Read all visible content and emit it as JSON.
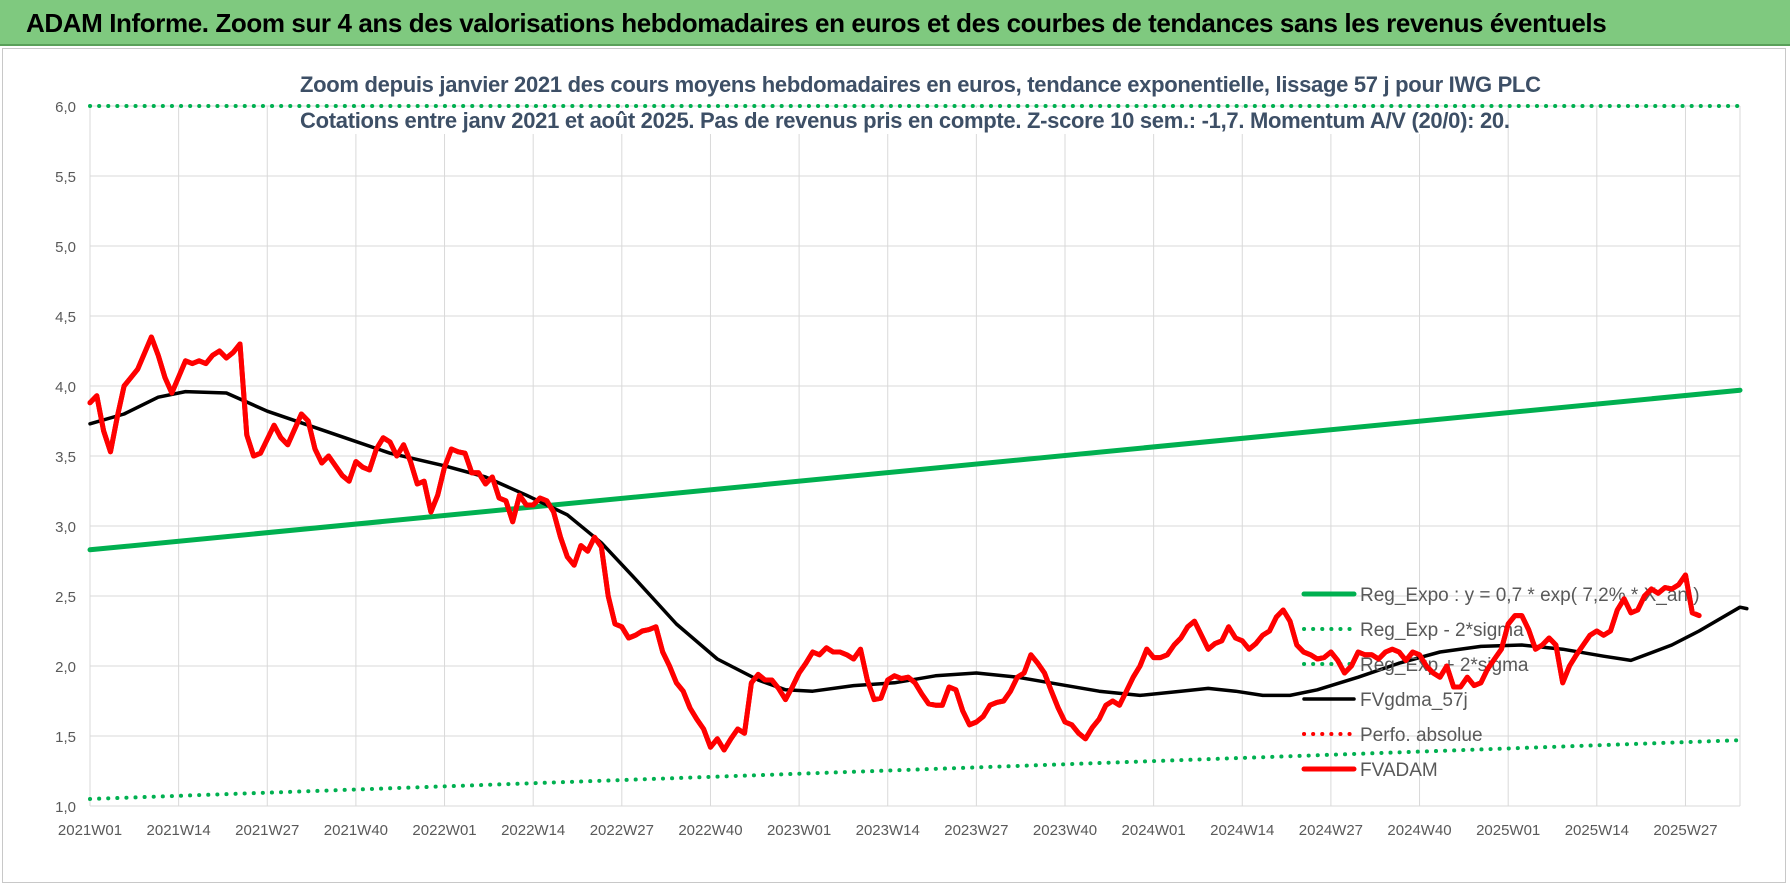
{
  "header": {
    "title": "ADAM Informe. Zoom sur 4 ans des valorisations hebdomadaires en euros et des courbes de tendances sans les revenus éventuels"
  },
  "colors": {
    "banner": "#7fc97f",
    "reg_expo": "#00b050",
    "fvgdma": "#000000",
    "fvadam": "#ff0000",
    "grid": "#d9d9d9",
    "subtitle": "#3d4f66"
  },
  "chart_data": {
    "type": "line",
    "subtitle_line1": "Zoom depuis janvier 2021 des cours moyens hebdomadaires en euros, tendance exponentielle, lissage 57 j pour IWG PLC",
    "subtitle_line2": "Cotations entre janv 2021 et août 2025. Pas de revenus pris en compte. Z-score 10 sem.: -1,7. Momentum A/V (20/0): 20.",
    "xlabel": "",
    "ylabel": "",
    "ylim": [
      1.0,
      6.0
    ],
    "y_ticks": [
      "1,0",
      "1,5",
      "2,0",
      "2,5",
      "3,0",
      "3,5",
      "4,0",
      "4,5",
      "5,0",
      "5,5",
      "6,0"
    ],
    "x_tick_labels": [
      "2021W01",
      "2021W14",
      "2021W27",
      "2021W40",
      "2022W01",
      "2022W14",
      "2022W27",
      "2022W40",
      "2023W01",
      "2023W14",
      "2023W27",
      "2023W40",
      "2024W01",
      "2024W14",
      "2024W27",
      "2024W40",
      "2025W01",
      "2025W14",
      "2025W27"
    ],
    "week_count": 243,
    "grid": true,
    "legend_position": "bottom-right",
    "legend": [
      "Reg_Expo : y = 0,7 * exp( 7,2% *  X_an )",
      "Reg_Exp - 2*sigma",
      "Reg_Exp + 2*sigma",
      "FVgdma_57j",
      "Perfo. absolue",
      "FVADAM"
    ],
    "series": [
      {
        "name": "Reg_Expo : y = 0,7 * exp( 7,2% *  X_an )",
        "style": "solid-thick",
        "color": "#00b050",
        "points": [
          [
            0,
            2.83
          ],
          [
            242,
            3.97
          ]
        ]
      },
      {
        "name": "Reg_Exp - 2*sigma",
        "style": "dotted",
        "color": "#00b050",
        "points": [
          [
            0,
            1.05
          ],
          [
            242,
            1.47
          ]
        ]
      },
      {
        "name": "Reg_Exp + 2*sigma",
        "style": "dotted",
        "color": "#00b050",
        "points": [
          [
            0,
            6.0
          ],
          [
            242,
            6.0
          ]
        ]
      },
      {
        "name": "FVgdma_57j",
        "style": "solid",
        "color": "#000000",
        "points": [
          [
            0,
            3.73
          ],
          [
            5,
            3.8
          ],
          [
            10,
            3.92
          ],
          [
            14,
            3.96
          ],
          [
            20,
            3.95
          ],
          [
            26,
            3.82
          ],
          [
            32,
            3.72
          ],
          [
            38,
            3.62
          ],
          [
            44,
            3.52
          ],
          [
            52,
            3.43
          ],
          [
            58,
            3.35
          ],
          [
            64,
            3.22
          ],
          [
            70,
            3.08
          ],
          [
            75,
            2.88
          ],
          [
            80,
            2.62
          ],
          [
            86,
            2.3
          ],
          [
            92,
            2.05
          ],
          [
            98,
            1.9
          ],
          [
            102,
            1.83
          ],
          [
            106,
            1.82
          ],
          [
            112,
            1.86
          ],
          [
            118,
            1.88
          ],
          [
            124,
            1.93
          ],
          [
            130,
            1.95
          ],
          [
            136,
            1.92
          ],
          [
            142,
            1.87
          ],
          [
            148,
            1.82
          ],
          [
            154,
            1.79
          ],
          [
            160,
            1.82
          ],
          [
            164,
            1.84
          ],
          [
            168,
            1.82
          ],
          [
            172,
            1.79
          ],
          [
            176,
            1.79
          ],
          [
            180,
            1.83
          ],
          [
            186,
            1.92
          ],
          [
            192,
            2.02
          ],
          [
            198,
            2.1
          ],
          [
            204,
            2.14
          ],
          [
            210,
            2.15
          ],
          [
            216,
            2.12
          ],
          [
            222,
            2.07
          ],
          [
            226,
            2.04
          ],
          [
            232,
            2.15
          ],
          [
            236,
            2.25
          ],
          [
            242,
            2.42
          ],
          [
            243,
            2.41
          ]
        ]
      },
      {
        "name": "FVADAM",
        "style": "solid-thick",
        "color": "#ff0000",
        "points": [
          [
            0,
            3.88
          ],
          [
            1,
            3.93
          ],
          [
            2,
            3.68
          ],
          [
            3,
            3.53
          ],
          [
            4,
            3.78
          ],
          [
            5,
            4.0
          ],
          [
            7,
            4.12
          ],
          [
            9,
            4.35
          ],
          [
            10,
            4.22
          ],
          [
            11,
            4.06
          ],
          [
            12,
            3.95
          ],
          [
            14,
            4.18
          ],
          [
            15,
            4.16
          ],
          [
            16,
            4.18
          ],
          [
            17,
            4.16
          ],
          [
            18,
            4.22
          ],
          [
            19,
            4.25
          ],
          [
            20,
            4.2
          ],
          [
            21,
            4.24
          ],
          [
            22,
            4.3
          ],
          [
            23,
            3.65
          ],
          [
            24,
            3.5
          ],
          [
            25,
            3.52
          ],
          [
            27,
            3.72
          ],
          [
            28,
            3.63
          ],
          [
            29,
            3.58
          ],
          [
            31,
            3.8
          ],
          [
            32,
            3.75
          ],
          [
            33,
            3.55
          ],
          [
            34,
            3.45
          ],
          [
            35,
            3.5
          ],
          [
            37,
            3.36
          ],
          [
            38,
            3.32
          ],
          [
            39,
            3.46
          ],
          [
            40,
            3.42
          ],
          [
            41,
            3.4
          ],
          [
            42,
            3.55
          ],
          [
            43,
            3.63
          ],
          [
            44,
            3.6
          ],
          [
            45,
            3.5
          ],
          [
            46,
            3.58
          ],
          [
            47,
            3.46
          ],
          [
            48,
            3.3
          ],
          [
            49,
            3.32
          ],
          [
            50,
            3.1
          ],
          [
            51,
            3.22
          ],
          [
            52,
            3.42
          ],
          [
            53,
            3.55
          ],
          [
            54,
            3.53
          ],
          [
            55,
            3.52
          ],
          [
            56,
            3.38
          ],
          [
            57,
            3.38
          ],
          [
            58,
            3.3
          ],
          [
            59,
            3.35
          ],
          [
            60,
            3.2
          ],
          [
            61,
            3.18
          ],
          [
            62,
            3.03
          ],
          [
            63,
            3.22
          ],
          [
            64,
            3.15
          ],
          [
            65,
            3.15
          ],
          [
            66,
            3.2
          ],
          [
            67,
            3.18
          ],
          [
            68,
            3.1
          ],
          [
            69,
            2.92
          ],
          [
            70,
            2.78
          ],
          [
            71,
            2.72
          ],
          [
            72,
            2.86
          ],
          [
            73,
            2.82
          ],
          [
            74,
            2.92
          ],
          [
            75,
            2.85
          ],
          [
            76,
            2.5
          ],
          [
            77,
            2.3
          ],
          [
            78,
            2.28
          ],
          [
            79,
            2.2
          ],
          [
            80,
            2.22
          ],
          [
            81,
            2.25
          ],
          [
            82,
            2.26
          ],
          [
            83,
            2.28
          ],
          [
            84,
            2.1
          ],
          [
            85,
            2.0
          ],
          [
            86,
            1.88
          ],
          [
            87,
            1.82
          ],
          [
            88,
            1.7
          ],
          [
            89,
            1.62
          ],
          [
            90,
            1.55
          ],
          [
            91,
            1.42
          ],
          [
            92,
            1.48
          ],
          [
            93,
            1.4
          ],
          [
            94,
            1.48
          ],
          [
            95,
            1.55
          ],
          [
            96,
            1.52
          ],
          [
            97,
            1.88
          ],
          [
            98,
            1.94
          ],
          [
            99,
            1.9
          ],
          [
            100,
            1.9
          ],
          [
            101,
            1.84
          ],
          [
            102,
            1.76
          ],
          [
            103,
            1.85
          ],
          [
            104,
            1.95
          ],
          [
            105,
            2.02
          ],
          [
            106,
            2.1
          ],
          [
            107,
            2.08
          ],
          [
            108,
            2.13
          ],
          [
            109,
            2.1
          ],
          [
            110,
            2.1
          ],
          [
            111,
            2.08
          ],
          [
            112,
            2.05
          ],
          [
            113,
            2.12
          ],
          [
            114,
            1.9
          ],
          [
            115,
            1.76
          ],
          [
            116,
            1.77
          ],
          [
            117,
            1.9
          ],
          [
            118,
            1.93
          ],
          [
            119,
            1.91
          ],
          [
            120,
            1.92
          ],
          [
            121,
            1.88
          ],
          [
            122,
            1.8
          ],
          [
            123,
            1.73
          ],
          [
            124,
            1.72
          ],
          [
            125,
            1.72
          ],
          [
            126,
            1.85
          ],
          [
            127,
            1.83
          ],
          [
            128,
            1.68
          ],
          [
            129,
            1.58
          ],
          [
            130,
            1.6
          ],
          [
            131,
            1.64
          ],
          [
            132,
            1.72
          ],
          [
            133,
            1.74
          ],
          [
            134,
            1.75
          ],
          [
            135,
            1.82
          ],
          [
            136,
            1.92
          ],
          [
            137,
            1.95
          ],
          [
            138,
            2.08
          ],
          [
            139,
            2.02
          ],
          [
            140,
            1.95
          ],
          [
            141,
            1.82
          ],
          [
            142,
            1.7
          ],
          [
            143,
            1.6
          ],
          [
            144,
            1.58
          ],
          [
            145,
            1.52
          ],
          [
            146,
            1.48
          ],
          [
            147,
            1.56
          ],
          [
            148,
            1.62
          ],
          [
            149,
            1.72
          ],
          [
            150,
            1.75
          ],
          [
            151,
            1.72
          ],
          [
            152,
            1.82
          ],
          [
            153,
            1.92
          ],
          [
            154,
            2.0
          ],
          [
            155,
            2.12
          ],
          [
            156,
            2.06
          ],
          [
            157,
            2.06
          ],
          [
            158,
            2.08
          ],
          [
            159,
            2.15
          ],
          [
            160,
            2.2
          ],
          [
            161,
            2.28
          ],
          [
            162,
            2.32
          ],
          [
            163,
            2.22
          ],
          [
            164,
            2.12
          ],
          [
            165,
            2.16
          ],
          [
            166,
            2.18
          ],
          [
            167,
            2.28
          ],
          [
            168,
            2.2
          ],
          [
            169,
            2.18
          ],
          [
            170,
            2.12
          ],
          [
            171,
            2.16
          ],
          [
            172,
            2.22
          ],
          [
            173,
            2.25
          ],
          [
            174,
            2.35
          ],
          [
            175,
            2.4
          ],
          [
            176,
            2.32
          ],
          [
            177,
            2.15
          ],
          [
            178,
            2.1
          ],
          [
            179,
            2.08
          ],
          [
            180,
            2.05
          ],
          [
            181,
            2.06
          ],
          [
            182,
            2.1
          ],
          [
            183,
            2.04
          ],
          [
            184,
            1.95
          ],
          [
            185,
            2.0
          ],
          [
            186,
            2.1
          ],
          [
            187,
            2.08
          ],
          [
            188,
            2.08
          ],
          [
            189,
            2.05
          ],
          [
            190,
            2.1
          ],
          [
            191,
            2.12
          ],
          [
            192,
            2.1
          ],
          [
            193,
            2.04
          ],
          [
            194,
            2.1
          ],
          [
            195,
            2.08
          ],
          [
            196,
            2.0
          ],
          [
            197,
            1.95
          ],
          [
            198,
            1.92
          ],
          [
            199,
            2.0
          ],
          [
            200,
            1.85
          ],
          [
            201,
            1.85
          ],
          [
            202,
            1.92
          ],
          [
            203,
            1.86
          ],
          [
            204,
            1.88
          ],
          [
            205,
            1.98
          ],
          [
            206,
            2.05
          ],
          [
            207,
            2.12
          ],
          [
            208,
            2.3
          ],
          [
            209,
            2.36
          ],
          [
            210,
            2.36
          ],
          [
            211,
            2.26
          ],
          [
            212,
            2.12
          ],
          [
            213,
            2.15
          ],
          [
            214,
            2.2
          ],
          [
            215,
            2.15
          ],
          [
            216,
            1.88
          ],
          [
            217,
            2.0
          ],
          [
            218,
            2.08
          ],
          [
            219,
            2.15
          ],
          [
            220,
            2.22
          ],
          [
            221,
            2.25
          ],
          [
            222,
            2.22
          ],
          [
            223,
            2.25
          ],
          [
            224,
            2.4
          ],
          [
            225,
            2.48
          ],
          [
            226,
            2.38
          ],
          [
            227,
            2.4
          ],
          [
            228,
            2.5
          ],
          [
            229,
            2.55
          ],
          [
            230,
            2.52
          ],
          [
            231,
            2.56
          ],
          [
            232,
            2.55
          ],
          [
            233,
            2.58
          ],
          [
            234,
            2.65
          ],
          [
            235,
            2.38
          ],
          [
            236,
            2.36
          ]
        ]
      }
    ]
  }
}
